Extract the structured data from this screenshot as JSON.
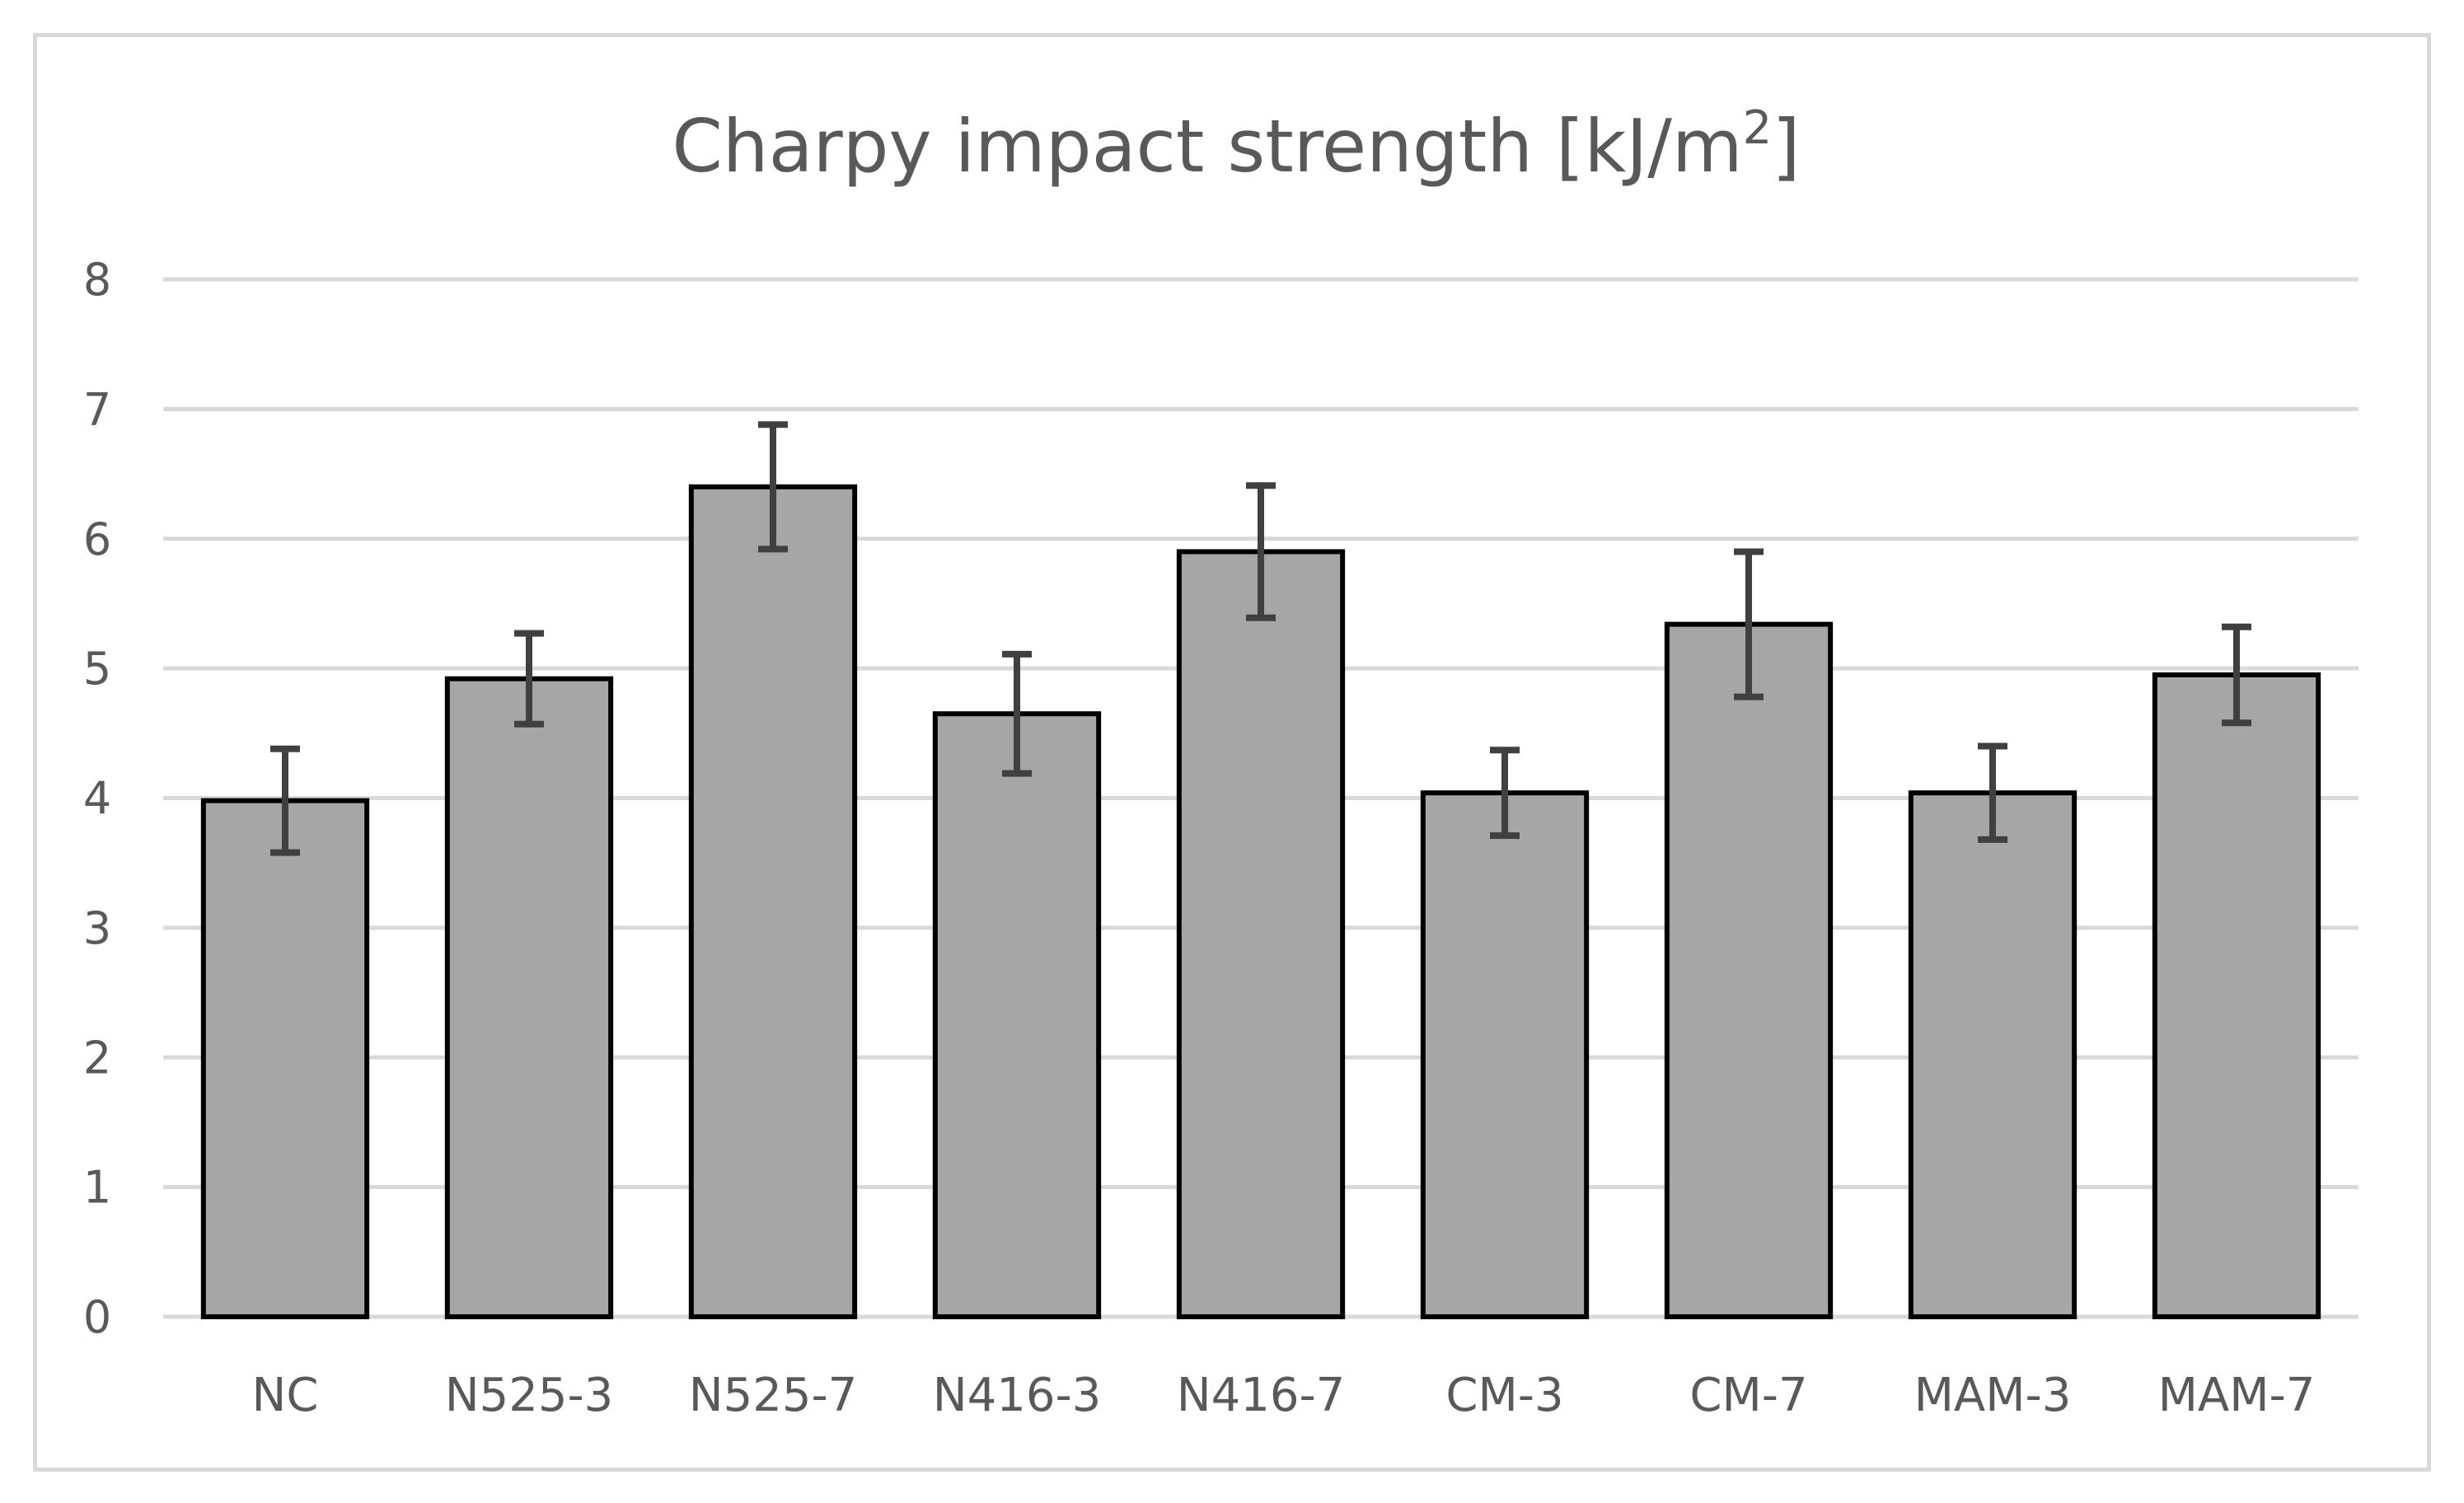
{
  "chart_data": {
    "type": "bar",
    "title": "Charpy impact strength [kJ/m",
    "title_superscript": "2",
    "title_suffix": "]",
    "xlabel": "",
    "ylabel": "",
    "ylim": [
      0,
      8
    ],
    "yticks": [
      "0",
      "1",
      "2",
      "3",
      "4",
      "5",
      "6",
      "7",
      "8"
    ],
    "grid": true,
    "legend": "none",
    "categories": [
      "NC",
      "N525-3",
      "N525-7",
      "N416-3",
      "N416-7",
      "CM-3",
      "CM-7",
      "MAM-3",
      "MAM-7"
    ],
    "values": [
      3.98,
      4.92,
      6.4,
      4.65,
      5.9,
      4.04,
      5.34,
      4.04,
      4.95
    ],
    "errors": [
      0.4,
      0.35,
      0.48,
      0.46,
      0.51,
      0.33,
      0.56,
      0.36,
      0.37
    ],
    "colors": {
      "bar_fill": "#a6a6a6",
      "bar_stroke": "#000000",
      "error_bar": "#404040",
      "grid": "#d9d9d9",
      "text": "#595959"
    }
  }
}
